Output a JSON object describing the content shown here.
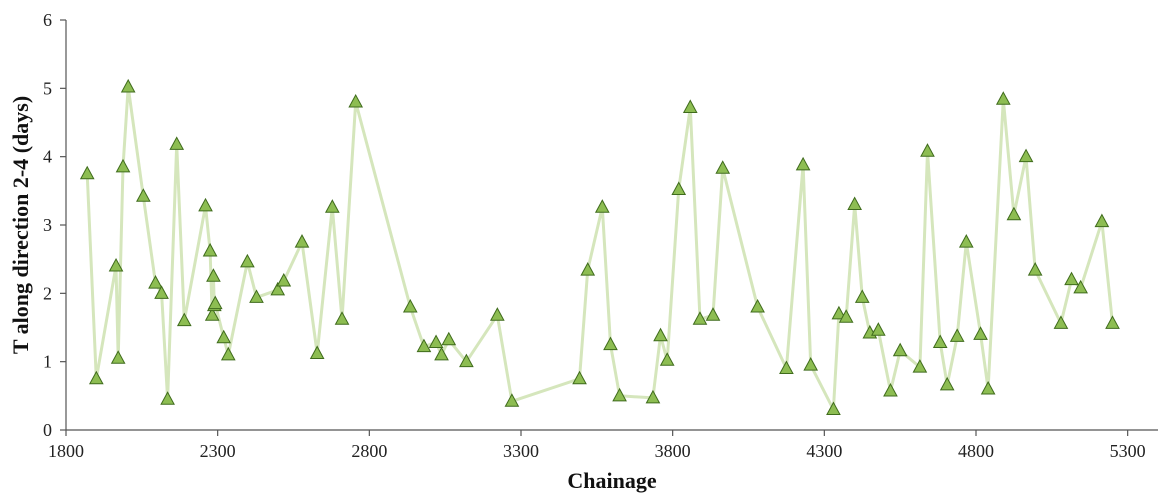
{
  "chart_data": {
    "type": "line",
    "title": "",
    "xlabel": "Chainage",
    "ylabel": "T along direction 2-4 (days)",
    "xlim": [
      1800,
      5400
    ],
    "ylim": [
      0,
      6
    ],
    "x_ticks": [
      1800,
      2300,
      2800,
      3300,
      3800,
      4300,
      4800,
      5300
    ],
    "y_ticks": [
      0,
      1,
      2,
      3,
      4,
      5,
      6
    ],
    "grid": false,
    "legend": "none",
    "colors": {
      "line": "#d5e6bc",
      "marker_fill": "#8dbd52",
      "marker_stroke": "#3f6b1c",
      "axis": "#555555"
    },
    "marker": "triangle",
    "series": [
      {
        "x": [
          1870,
          1900,
          1965,
          1972,
          1988,
          2005,
          2055,
          2095,
          2115,
          2135,
          2165,
          2190,
          2260,
          2275,
          2282,
          2286,
          2289,
          2292,
          2320,
          2335,
          2398,
          2428,
          2498,
          2518,
          2578,
          2628,
          2678,
          2710,
          2755,
          2935,
          2980,
          3020,
          3038,
          3062,
          3120,
          3222,
          3270,
          3493,
          3520,
          3568,
          3595,
          3625,
          3735,
          3760,
          3782,
          3820,
          3858,
          3890,
          3933,
          3965,
          4080,
          4175,
          4230,
          4255,
          4330,
          4348,
          4372,
          4400,
          4425,
          4450,
          4478,
          4518,
          4550,
          4615,
          4640,
          4682,
          4705,
          4738,
          4768,
          4815,
          4840,
          4890,
          4925,
          4965,
          4995,
          5080,
          5115,
          5145,
          5215,
          5250
        ],
        "y": [
          3.75,
          0.75,
          2.4,
          1.05,
          3.85,
          5.02,
          3.42,
          2.15,
          2.0,
          0.45,
          4.18,
          1.6,
          3.28,
          2.62,
          1.68,
          2.25,
          1.82,
          1.85,
          1.35,
          1.1,
          2.46,
          1.94,
          2.05,
          2.18,
          2.75,
          1.12,
          3.26,
          1.62,
          4.8,
          1.8,
          1.22,
          1.28,
          1.1,
          1.32,
          1.0,
          1.68,
          0.42,
          0.75,
          2.34,
          3.26,
          1.25,
          0.5,
          0.47,
          1.38,
          1.02,
          3.52,
          4.72,
          1.62,
          1.68,
          3.83,
          1.8,
          0.9,
          3.88,
          0.95,
          0.3,
          1.7,
          1.65,
          3.3,
          1.94,
          1.42,
          1.46,
          0.57,
          1.16,
          0.92,
          4.08,
          1.28,
          0.66,
          1.37,
          2.75,
          1.4,
          0.6,
          4.84,
          3.15,
          4.0,
          2.34,
          1.56,
          2.2,
          2.08,
          3.05,
          1.56
        ]
      }
    ]
  }
}
